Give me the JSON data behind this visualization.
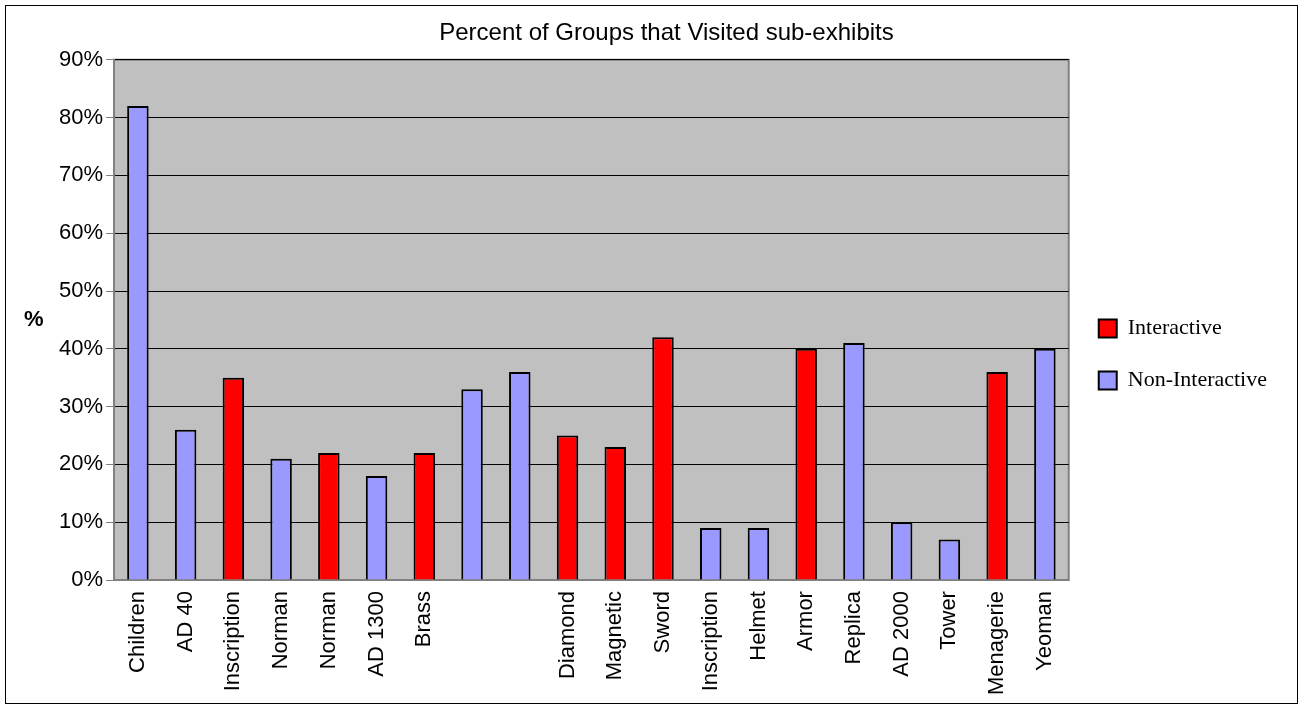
{
  "chart_data": {
    "type": "bar",
    "title": "Percent of Groups that Visited sub-exhibits",
    "ylabel": "%",
    "categories": [
      "Children",
      "AD 40",
      "Inscription",
      "Norman",
      "Norman",
      "AD 1300",
      "Brass",
      null,
      null,
      "Diamond",
      "Magnetic",
      "Sword",
      "Inscription",
      "Helmet",
      "Armor",
      "Replica",
      "AD 2000",
      "Tower",
      "Menagerie",
      "Yeoman"
    ],
    "series": [
      {
        "name": "Interactive",
        "color": "#ff0000",
        "values": [
          null,
          null,
          35,
          null,
          22,
          null,
          22,
          null,
          null,
          25,
          23,
          42,
          null,
          null,
          40,
          null,
          null,
          null,
          36,
          null
        ]
      },
      {
        "name": "Non-Interactive",
        "color": "#9999ff",
        "values": [
          82,
          26,
          null,
          21,
          null,
          18,
          null,
          33,
          36,
          null,
          null,
          null,
          9,
          9,
          null,
          41,
          10,
          7,
          null,
          40
        ]
      }
    ],
    "ylim": [
      0,
      90
    ],
    "yticks": [
      {
        "value": 0,
        "label": "0%"
      },
      {
        "value": 10,
        "label": "10%"
      },
      {
        "value": 20,
        "label": "20%"
      },
      {
        "value": 30,
        "label": "30%"
      },
      {
        "value": 40,
        "label": "40%"
      },
      {
        "value": 50,
        "label": "50%"
      },
      {
        "value": 60,
        "label": "60%"
      },
      {
        "value": 70,
        "label": "70%"
      },
      {
        "value": 80,
        "label": "80%"
      },
      {
        "value": 90,
        "label": "90%"
      }
    ],
    "grid": "y",
    "legend": "right"
  }
}
